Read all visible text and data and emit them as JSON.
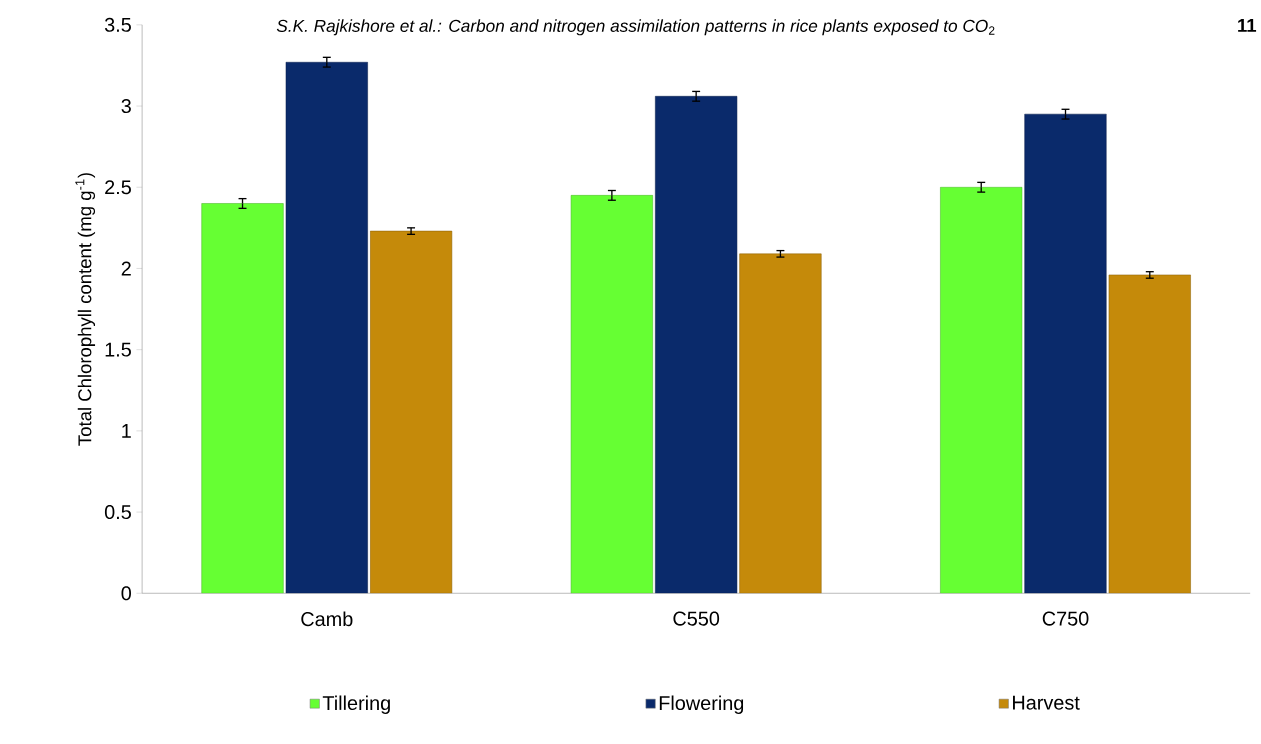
{
  "chart_data": {
    "type": "bar",
    "ylabel": "Total Chlorophyll content  (mg g$^{-1}$)",
    "annotations": [
      "*S.K. Rajkishore et al.: Carbon and nitrogen assimilation patterns in rice plants exposed to CO*$_{2}$",
      "**11**"
    ],
    "categories": [
      "Camb",
      "C550",
      "C750"
    ],
    "series": [
      {
        "name": "Tillering",
        "color": "#66ff33",
        "values": [
          2.4,
          2.45,
          2.5
        ],
        "errors": [
          0.03,
          0.03,
          0.03
        ]
      },
      {
        "name": "Flowering",
        "color": "#0a2a6b",
        "values": [
          3.27,
          3.06,
          2.95
        ],
        "errors": [
          0.03,
          0.03,
          0.03
        ]
      },
      {
        "name": "Harvest",
        "color": "#c58a0a",
        "values": [
          2.23,
          2.09,
          1.96
        ],
        "errors": [
          0.02,
          0.02,
          0.02
        ]
      }
    ],
    "ylim": [
      0,
      3.5
    ],
    "yticks": [
      0,
      0.5,
      1,
      1.5,
      2,
      2.5,
      3,
      3.5
    ],
    "grid": false,
    "legend": "bottom"
  }
}
